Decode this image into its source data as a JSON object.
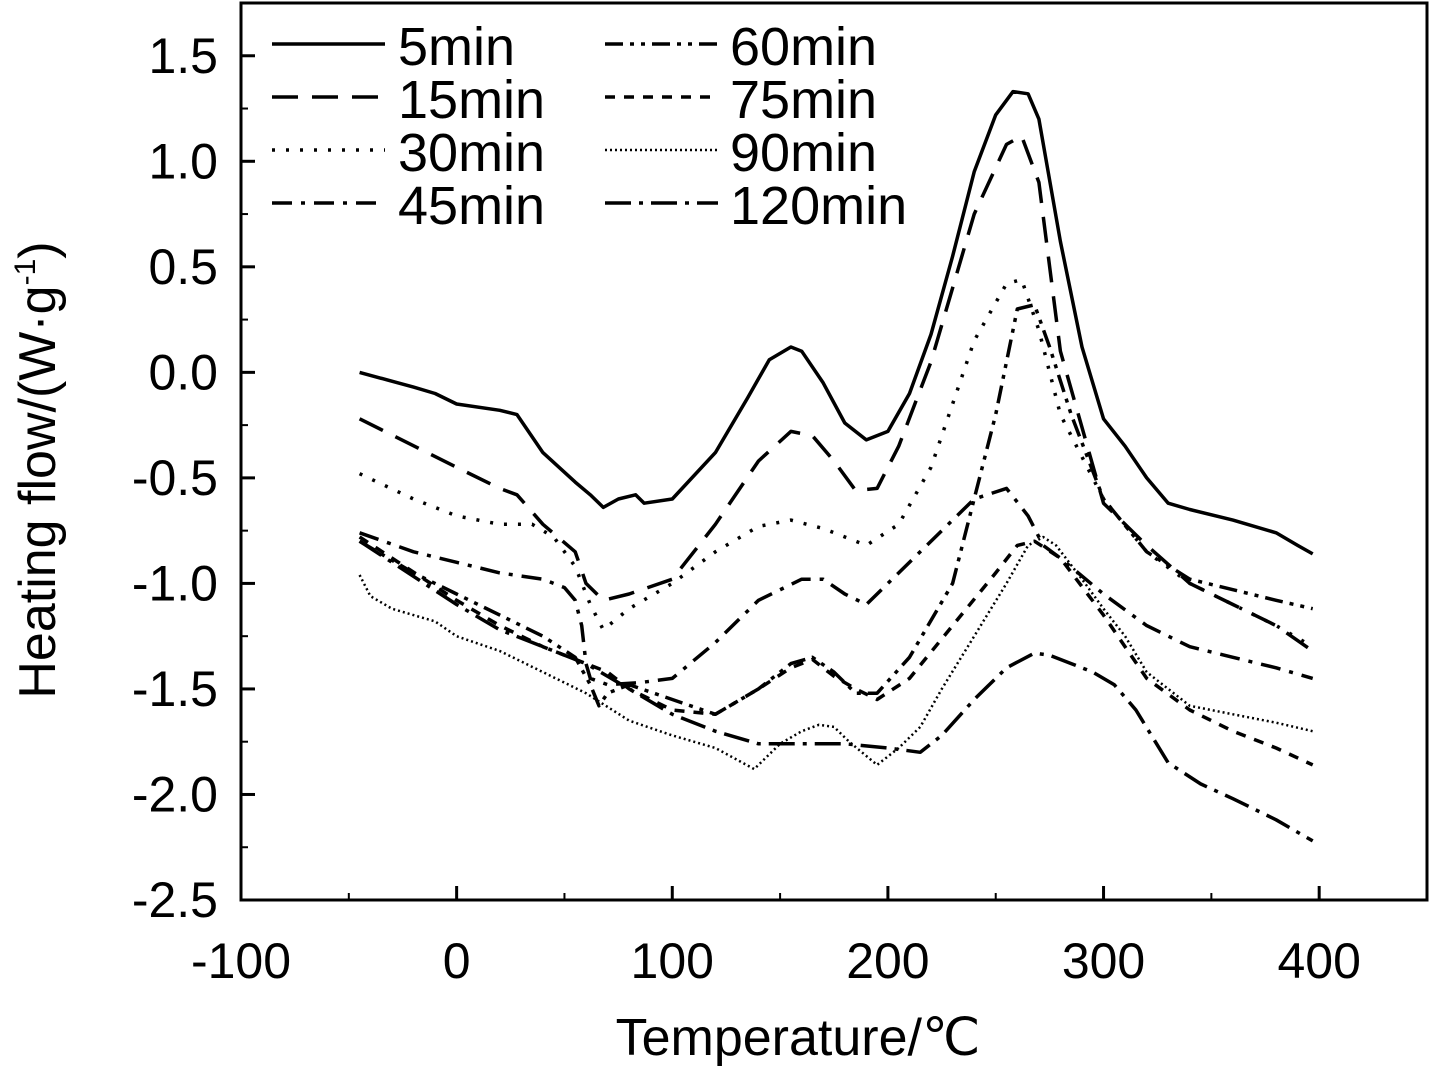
{
  "chart_data": {
    "type": "line",
    "title": "",
    "xlabel": "Temperature/℃",
    "ylabel": "Heating flow/(W·g",
    "ylabel_sup": "-1",
    "ylabel_end": ")",
    "xlim": [
      -100,
      450
    ],
    "ylim": [
      -2.5,
      1.75
    ],
    "x_ticks": [
      -100,
      0,
      100,
      200,
      300,
      400
    ],
    "x_tick_labels": [
      "-100",
      "0",
      "100",
      "200",
      "300",
      "400"
    ],
    "y_ticks": [
      1.5,
      1.0,
      0.5,
      0.0,
      -0.5,
      -1.0,
      -1.5,
      -2.0,
      -2.5
    ],
    "y_tick_labels": [
      "1.5",
      "1.0",
      "0.5",
      "0.0",
      "-0.5",
      "-1.0",
      "-1.5",
      "-2.0",
      "-2.5"
    ],
    "grid": false,
    "legend_position": "top-left",
    "series": [
      {
        "name": "5min",
        "dash": "solid",
        "color": "#000000",
        "x": [
          -45,
          -20,
          -10,
          0,
          20,
          28,
          40,
          55,
          62,
          68,
          75,
          83,
          87,
          100,
          120,
          135,
          145,
          155,
          160,
          170,
          180,
          190,
          200,
          210,
          220,
          230,
          240,
          250,
          258,
          265,
          270,
          280,
          290,
          300,
          310,
          320,
          330,
          340,
          360,
          380,
          390,
          397
        ],
        "y": [
          0.0,
          -0.07,
          -0.1,
          -0.15,
          -0.18,
          -0.2,
          -0.38,
          -0.52,
          -0.58,
          -0.64,
          -0.6,
          -0.58,
          -0.62,
          -0.6,
          -0.38,
          -0.12,
          0.06,
          0.12,
          0.1,
          -0.05,
          -0.24,
          -0.32,
          -0.28,
          -0.1,
          0.18,
          0.55,
          0.95,
          1.22,
          1.33,
          1.32,
          1.2,
          0.62,
          0.12,
          -0.22,
          -0.35,
          -0.5,
          -0.62,
          -0.65,
          -0.7,
          -0.76,
          -0.82,
          -0.86
        ]
      },
      {
        "name": "15min",
        "dash": "long-dash",
        "color": "#000000",
        "x": [
          -45,
          0,
          20,
          28,
          40,
          55,
          60,
          68,
          80,
          100,
          120,
          140,
          155,
          165,
          175,
          185,
          195,
          205,
          220,
          240,
          255,
          262,
          270,
          280,
          300,
          320,
          340,
          360,
          380,
          397
        ],
        "y": [
          -0.22,
          -0.45,
          -0.55,
          -0.58,
          -0.72,
          -0.85,
          -1.0,
          -1.08,
          -1.05,
          -0.98,
          -0.72,
          -0.42,
          -0.28,
          -0.3,
          -0.42,
          -0.56,
          -0.55,
          -0.35,
          0.05,
          0.75,
          1.08,
          1.12,
          0.9,
          0.1,
          -0.62,
          -0.82,
          -1.0,
          -1.1,
          -1.2,
          -1.32
        ]
      },
      {
        "name": "30min",
        "dash": "dot",
        "color": "#000000",
        "x": [
          -45,
          -20,
          0,
          20,
          35,
          45,
          55,
          62,
          68,
          80,
          100,
          120,
          140,
          155,
          170,
          190,
          205,
          220,
          240,
          255,
          262,
          270,
          280,
          300,
          320,
          340,
          360,
          380,
          397
        ],
        "y": [
          -0.48,
          -0.6,
          -0.68,
          -0.72,
          -0.72,
          -0.78,
          -0.92,
          -1.1,
          -1.22,
          -1.12,
          -1.0,
          -0.85,
          -0.73,
          -0.7,
          -0.74,
          -0.82,
          -0.72,
          -0.45,
          0.15,
          0.42,
          0.44,
          0.2,
          -0.2,
          -0.6,
          -0.85,
          -1.0,
          -1.1,
          -1.2,
          -1.3
        ]
      },
      {
        "name": "45min",
        "dash": "dash-dot",
        "color": "#000000",
        "x": [
          -45,
          -20,
          0,
          20,
          40,
          50,
          55,
          58,
          60,
          62,
          70,
          85,
          100,
          120,
          140,
          160,
          170,
          180,
          190,
          200,
          220,
          240,
          255,
          265,
          272,
          280,
          300,
          320,
          340,
          360,
          380,
          397
        ],
        "y": [
          -0.76,
          -0.85,
          -0.9,
          -0.95,
          -0.98,
          -1.02,
          -1.08,
          -1.2,
          -1.38,
          -1.45,
          -1.48,
          -1.47,
          -1.45,
          -1.28,
          -1.08,
          -0.98,
          -0.98,
          -1.05,
          -1.1,
          -1.0,
          -0.8,
          -0.6,
          -0.55,
          -0.68,
          -0.82,
          -0.88,
          -1.05,
          -1.2,
          -1.3,
          -1.35,
          -1.4,
          -1.45
        ]
      },
      {
        "name": "60min",
        "dash": "dash-dot-dot",
        "color": "#000000",
        "x": [
          -45,
          -20,
          0,
          20,
          40,
          55,
          62,
          66,
          70,
          80,
          100,
          120,
          140,
          155,
          165,
          175,
          185,
          195,
          210,
          230,
          250,
          260,
          268,
          275,
          285,
          300,
          320,
          340,
          360,
          380,
          397
        ],
        "y": [
          -0.8,
          -0.95,
          -1.05,
          -1.15,
          -1.25,
          -1.35,
          -1.48,
          -1.58,
          -1.52,
          -1.48,
          -1.55,
          -1.62,
          -1.5,
          -1.38,
          -1.35,
          -1.42,
          -1.52,
          -1.52,
          -1.35,
          -1.0,
          -0.2,
          0.3,
          0.32,
          0.12,
          -0.2,
          -0.6,
          -0.85,
          -0.98,
          -1.03,
          -1.08,
          -1.12
        ]
      },
      {
        "name": "75min",
        "dash": "short-dash",
        "color": "#000000",
        "x": [
          -45,
          0,
          20,
          40,
          60,
          70,
          80,
          100,
          120,
          140,
          155,
          165,
          175,
          185,
          195,
          210,
          230,
          250,
          260,
          268,
          280,
          300,
          320,
          340,
          360,
          380,
          397
        ],
        "y": [
          -0.78,
          -1.08,
          -1.2,
          -1.3,
          -1.38,
          -1.42,
          -1.5,
          -1.6,
          -1.62,
          -1.5,
          -1.4,
          -1.36,
          -1.44,
          -1.5,
          -1.55,
          -1.45,
          -1.2,
          -0.95,
          -0.82,
          -0.8,
          -0.88,
          -1.15,
          -1.45,
          -1.6,
          -1.7,
          -1.78,
          -1.86
        ]
      },
      {
        "name": "90min",
        "dash": "fine-dot",
        "color": "#000000",
        "x": [
          -45,
          -40,
          -30,
          -20,
          -10,
          0,
          20,
          40,
          60,
          80,
          100,
          120,
          138,
          150,
          160,
          168,
          175,
          182,
          195,
          205,
          215,
          225,
          240,
          255,
          265,
          272,
          278,
          290,
          300,
          310,
          320,
          340,
          360,
          380,
          397
        ],
        "y": [
          -0.96,
          -1.06,
          -1.12,
          -1.15,
          -1.18,
          -1.25,
          -1.32,
          -1.42,
          -1.52,
          -1.65,
          -1.72,
          -1.78,
          -1.88,
          -1.76,
          -1.7,
          -1.67,
          -1.68,
          -1.75,
          -1.86,
          -1.78,
          -1.68,
          -1.5,
          -1.25,
          -1.0,
          -0.82,
          -0.78,
          -0.82,
          -0.98,
          -1.12,
          -1.25,
          -1.42,
          -1.58,
          -1.62,
          -1.66,
          -1.7
        ]
      },
      {
        "name": "120min",
        "dash": "long-dash-dot",
        "color": "#000000",
        "x": [
          -45,
          0,
          20,
          40,
          60,
          80,
          100,
          120,
          140,
          160,
          180,
          200,
          215,
          225,
          240,
          255,
          268,
          275,
          285,
          295,
          305,
          315,
          330,
          345,
          360,
          380,
          397
        ],
        "y": [
          -0.8,
          -1.1,
          -1.22,
          -1.3,
          -1.38,
          -1.5,
          -1.62,
          -1.7,
          -1.76,
          -1.76,
          -1.76,
          -1.78,
          -1.8,
          -1.72,
          -1.55,
          -1.4,
          -1.33,
          -1.34,
          -1.38,
          -1.42,
          -1.48,
          -1.6,
          -1.85,
          -1.95,
          -2.02,
          -2.12,
          -2.22
        ]
      }
    ]
  }
}
